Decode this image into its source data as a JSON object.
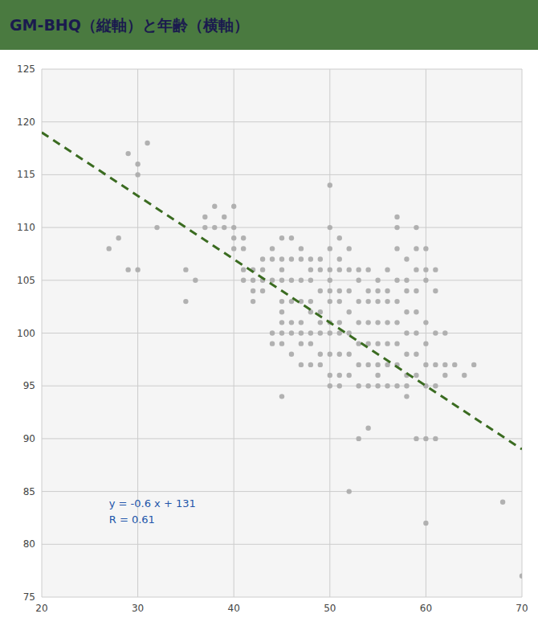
{
  "chart_data": {
    "type": "scatter",
    "title": "GM-BHQ（縦軸）と年齢（横軸）",
    "xlim": [
      20,
      70
    ],
    "ylim": [
      75,
      125
    ],
    "xticks": [
      20,
      30,
      40,
      50,
      60,
      70
    ],
    "yticks": [
      75,
      80,
      85,
      90,
      95,
      100,
      105,
      110,
      115,
      120,
      125
    ],
    "grid": true,
    "annotations": [
      "y = -0.6 x + 131",
      "R = 0.61"
    ],
    "series": [
      {
        "type": "scatter",
        "color": "#aaaaaa",
        "marker": "circle",
        "x": [
          27,
          29,
          30,
          30,
          31,
          28,
          29,
          30,
          32,
          35,
          35,
          36,
          37,
          37,
          38,
          38,
          39,
          39,
          40,
          40,
          40,
          40,
          41,
          41,
          41,
          41,
          42,
          42,
          42,
          42,
          43,
          43,
          43,
          43,
          44,
          44,
          44,
          44,
          44,
          45,
          45,
          45,
          45,
          45,
          45,
          45,
          45,
          45,
          45,
          46,
          46,
          46,
          46,
          46,
          46,
          46,
          47,
          47,
          47,
          47,
          47,
          47,
          47,
          47,
          48,
          48,
          48,
          48,
          48,
          48,
          48,
          48,
          49,
          49,
          49,
          49,
          49,
          49,
          49,
          49,
          50,
          50,
          50,
          50,
          50,
          50,
          50,
          50,
          50,
          50,
          50,
          50,
          51,
          51,
          51,
          51,
          51,
          51,
          51,
          51,
          51,
          51,
          52,
          52,
          52,
          52,
          52,
          52,
          52,
          52,
          53,
          53,
          53,
          53,
          53,
          53,
          53,
          53,
          54,
          54,
          54,
          54,
          54,
          54,
          54,
          54,
          55,
          55,
          55,
          55,
          55,
          55,
          55,
          55,
          56,
          56,
          56,
          56,
          56,
          56,
          56,
          57,
          57,
          57,
          57,
          57,
          57,
          57,
          57,
          57,
          58,
          58,
          58,
          58,
          58,
          58,
          58,
          58,
          58,
          59,
          59,
          59,
          59,
          59,
          59,
          59,
          59,
          59,
          60,
          60,
          60,
          60,
          60,
          60,
          60,
          60,
          60,
          61,
          61,
          61,
          61,
          61,
          61,
          62,
          62,
          62,
          63,
          64,
          65,
          68,
          70
        ],
        "values": [
          108,
          117,
          116,
          115,
          118,
          109,
          106,
          106,
          110,
          106,
          103,
          105,
          110,
          111,
          112,
          110,
          111,
          110,
          112,
          110,
          109,
          108,
          109,
          108,
          106,
          105,
          106,
          105,
          104,
          103,
          107,
          106,
          105,
          104,
          108,
          107,
          105,
          100,
          99,
          109,
          107,
          106,
          105,
          103,
          102,
          101,
          100,
          99,
          94,
          109,
          107,
          105,
          103,
          101,
          100,
          98,
          108,
          107,
          105,
          103,
          101,
          100,
          99,
          97,
          107,
          106,
          105,
          103,
          102,
          100,
          99,
          97,
          107,
          106,
          104,
          102,
          101,
          100,
          98,
          97,
          114,
          110,
          108,
          106,
          105,
          104,
          103,
          101,
          100,
          98,
          96,
          95,
          109,
          107,
          106,
          104,
          103,
          101,
          100,
          98,
          96,
          95,
          108,
          106,
          104,
          102,
          100,
          98,
          96,
          85,
          106,
          105,
          103,
          101,
          99,
          97,
          95,
          90,
          106,
          104,
          103,
          101,
          99,
          97,
          95,
          91,
          105,
          104,
          103,
          101,
          99,
          97,
          96,
          95,
          106,
          104,
          103,
          101,
          99,
          97,
          95,
          111,
          110,
          108,
          105,
          103,
          101,
          99,
          97,
          95,
          107,
          105,
          104,
          102,
          100,
          98,
          96,
          95,
          94,
          110,
          108,
          106,
          104,
          102,
          100,
          98,
          96,
          90,
          108,
          106,
          105,
          101,
          99,
          97,
          95,
          90,
          82,
          106,
          104,
          100,
          97,
          95,
          90,
          100,
          97,
          96,
          97,
          96,
          97,
          84,
          77
        ]
      },
      {
        "type": "line",
        "color": "#3a6b20",
        "line_style": "dashed",
        "x": [
          20,
          70
        ],
        "values": [
          119,
          89
        ]
      }
    ]
  }
}
